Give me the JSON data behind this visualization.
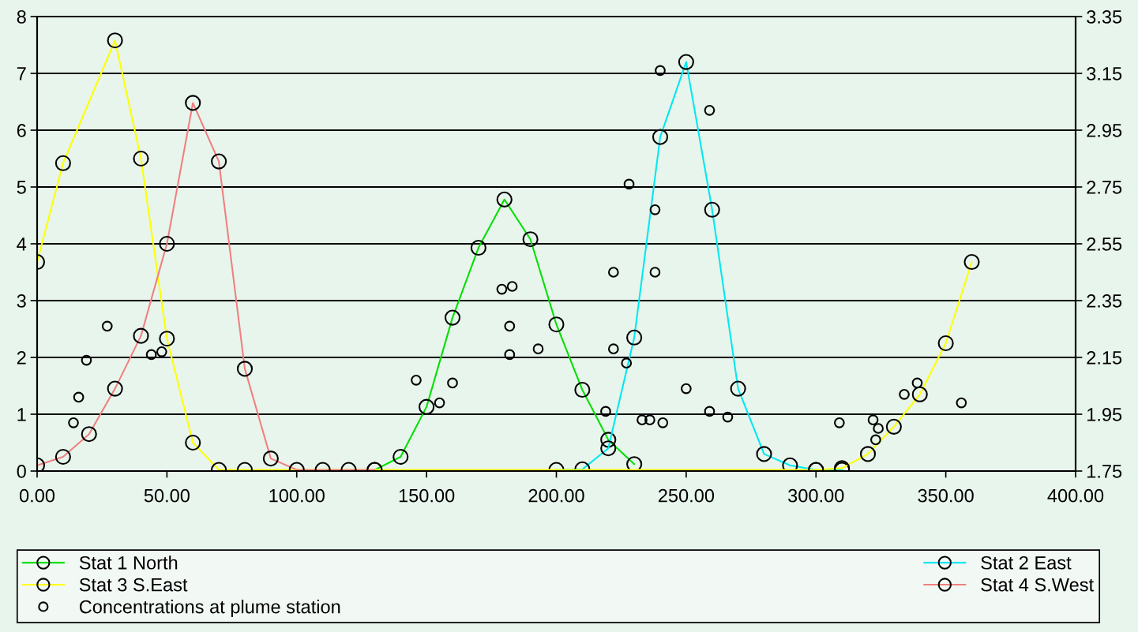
{
  "chart_data": {
    "type": "line",
    "marker": "circle",
    "grid": "y",
    "legend": "bottom",
    "xlim": [
      0,
      400
    ],
    "xticks": [
      {
        "value": 0,
        "label": "0.00"
      },
      {
        "value": 50,
        "label": "50.00"
      },
      {
        "value": 100,
        "label": "100.00"
      },
      {
        "value": 150,
        "label": "150.00"
      },
      {
        "value": 200,
        "label": "200.00"
      },
      {
        "value": 250,
        "label": "250.00"
      },
      {
        "value": 300,
        "label": "300.00"
      },
      {
        "value": 350,
        "label": "350.00"
      },
      {
        "value": 400,
        "label": "400.00"
      }
    ],
    "ylim": [
      0,
      8
    ],
    "yticks": [
      0,
      1,
      2,
      3,
      4,
      5,
      6,
      7,
      8
    ],
    "y2lim": [
      1.75,
      3.35
    ],
    "y2ticks": [
      1.75,
      1.95,
      2.15,
      2.35,
      2.55,
      2.75,
      2.95,
      3.15,
      3.35
    ],
    "series": [
      {
        "name": "Stat 1 North",
        "color": "#00e000",
        "x": [
          130,
          140,
          150,
          160,
          170,
          180,
          190,
          200,
          210,
          220,
          230
        ],
        "values": [
          0.02,
          0.25,
          1.13,
          2.7,
          3.93,
          4.78,
          4.08,
          2.58,
          1.43,
          0.55,
          0.12
        ]
      },
      {
        "name": "Stat 2 East",
        "color": "#00e8f0",
        "x": [
          200,
          210,
          220,
          230,
          240,
          250,
          260,
          270,
          280,
          290,
          300,
          310
        ],
        "values": [
          0.02,
          0.03,
          0.4,
          2.35,
          5.88,
          7.2,
          4.6,
          1.45,
          0.3,
          0.1,
          0.02,
          0.02
        ]
      },
      {
        "name": "Stat 3 S.East",
        "color": "#ffff00",
        "x": [
          0,
          10,
          30,
          40,
          50,
          60,
          70,
          80,
          300,
          310,
          320,
          330,
          340,
          350,
          360
        ],
        "values": [
          3.68,
          5.42,
          7.58,
          5.5,
          2.33,
          0.5,
          0.02,
          0.02,
          0.02,
          0.05,
          0.3,
          0.78,
          1.35,
          2.25,
          3.68
        ]
      },
      {
        "name": "Stat 4 S.West",
        "color": "#f08080",
        "x": [
          0,
          10,
          20,
          30,
          40,
          50,
          60,
          70,
          80,
          90,
          100,
          110,
          120,
          130
        ],
        "values": [
          0.1,
          0.25,
          0.65,
          1.45,
          2.38,
          4.0,
          6.48,
          5.45,
          1.8,
          0.22,
          0.02,
          0.02,
          0.02,
          0.02
        ]
      },
      {
        "name": "Concentrations at plume station",
        "type": "scatter",
        "axis": "y2",
        "color": "#000000",
        "x": [
          14,
          16,
          19,
          27,
          44,
          48,
          146,
          155,
          160,
          179,
          183,
          182,
          182,
          193,
          219,
          222,
          222,
          227,
          228,
          233,
          236,
          241,
          238,
          238,
          240,
          250,
          259,
          259,
          266,
          309,
          322,
          324,
          323,
          334,
          339,
          356
        ],
        "values": [
          1.92,
          2.01,
          2.14,
          2.26,
          2.16,
          2.17,
          2.07,
          1.99,
          2.06,
          2.39,
          2.4,
          2.26,
          2.16,
          2.18,
          1.96,
          2.18,
          2.45,
          2.13,
          2.76,
          1.93,
          1.93,
          1.92,
          2.45,
          2.67,
          3.16,
          2.04,
          1.96,
          3.02,
          1.94,
          1.92,
          1.93,
          1.9,
          1.86,
          2.02,
          2.06,
          1.99
        ]
      }
    ]
  }
}
